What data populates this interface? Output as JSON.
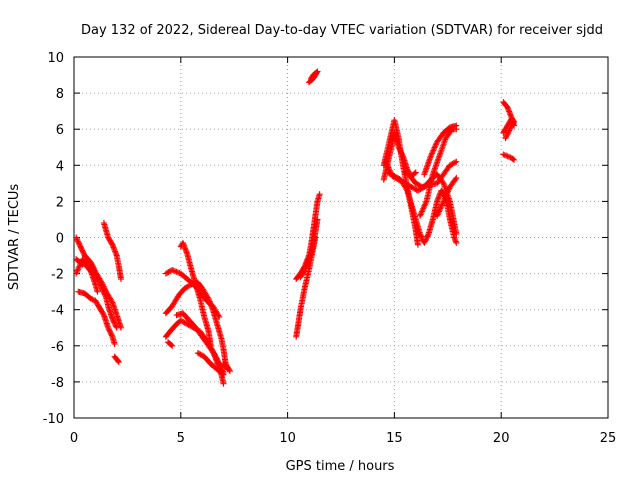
{
  "chart_data": {
    "type": "scatter",
    "title": "Day 132 of 2022, Sidereal Day-to-day VTEC variation (SDTVAR) for receiver sjdd",
    "xlabel": "GPS time / hours",
    "ylabel": "SDTVAR / TECUs",
    "xlim": [
      0,
      25
    ],
    "ylim": [
      -10,
      10
    ],
    "xticks": [
      "0",
      "5",
      "10",
      "15",
      "20",
      "25"
    ],
    "yticks": [
      "-10",
      "-8",
      "-6",
      "-4",
      "-2",
      "0",
      "2",
      "4",
      "6",
      "8",
      "10"
    ],
    "grid": true,
    "marker": "+",
    "color": "#ff0000",
    "segments": [
      [
        [
          0.1,
          0
        ],
        [
          0.3,
          -0.5
        ],
        [
          0.5,
          -1.0
        ],
        [
          0.8,
          -1.4
        ],
        [
          1.0,
          -1.9
        ],
        [
          1.3,
          -2.5
        ],
        [
          1.5,
          -3.0
        ],
        [
          1.8,
          -3.6
        ],
        [
          2.0,
          -4.3
        ],
        [
          2.2,
          -5.0
        ]
      ],
      [
        [
          0.1,
          -1.2
        ],
        [
          0.4,
          -1.5
        ],
        [
          0.7,
          -1.3
        ],
        [
          0.9,
          -1.8
        ],
        [
          1.1,
          -2.3
        ],
        [
          1.3,
          -2.8
        ],
        [
          1.5,
          -3.3
        ],
        [
          1.6,
          -3.8
        ],
        [
          1.8,
          -4.5
        ],
        [
          2.0,
          -5.0
        ]
      ],
      [
        [
          0.1,
          -2.0
        ],
        [
          0.4,
          -1.2
        ],
        [
          0.6,
          -1.6
        ],
        [
          0.8,
          -1.9
        ],
        [
          1.0,
          -2.6
        ],
        [
          1.1,
          -3.0
        ]
      ],
      [
        [
          0.2,
          -3.0
        ],
        [
          0.5,
          -3.1
        ],
        [
          0.8,
          -3.4
        ],
        [
          1.0,
          -3.5
        ],
        [
          1.2,
          -3.9
        ],
        [
          1.4,
          -4.3
        ],
        [
          1.6,
          -5.0
        ],
        [
          1.8,
          -5.5
        ],
        [
          1.9,
          -5.9
        ]
      ],
      [
        [
          1.4,
          0.8
        ],
        [
          1.6,
          0
        ],
        [
          1.8,
          -0.4
        ],
        [
          2.0,
          -1.0
        ],
        [
          2.1,
          -1.6
        ],
        [
          2.2,
          -2.3
        ]
      ],
      [
        [
          1.9,
          -6.6
        ],
        [
          2.1,
          -6.9
        ]
      ],
      [
        [
          4.3,
          -2.0
        ],
        [
          4.6,
          -1.8
        ],
        [
          5.0,
          -2.0
        ],
        [
          5.3,
          -2.3
        ],
        [
          5.6,
          -2.6
        ],
        [
          5.9,
          -3.0
        ],
        [
          6.2,
          -3.5
        ],
        [
          6.5,
          -3.8
        ],
        [
          6.8,
          -4.4
        ]
      ],
      [
        [
          4.3,
          -4.2
        ],
        [
          4.6,
          -3.8
        ],
        [
          4.9,
          -3.2
        ],
        [
          5.2,
          -2.8
        ],
        [
          5.5,
          -2.6
        ],
        [
          5.8,
          -2.5
        ],
        [
          6.0,
          -2.8
        ],
        [
          6.3,
          -3.4
        ],
        [
          6.5,
          -4.0
        ],
        [
          6.7,
          -4.8
        ],
        [
          6.9,
          -5.6
        ],
        [
          7.0,
          -6.2
        ],
        [
          7.1,
          -7.0
        ],
        [
          7.3,
          -7.4
        ]
      ],
      [
        [
          4.3,
          -5.5
        ],
        [
          4.5,
          -5.2
        ],
        [
          4.8,
          -4.8
        ],
        [
          5.0,
          -4.6
        ],
        [
          5.3,
          -4.8
        ],
        [
          5.6,
          -5.0
        ],
        [
          5.9,
          -5.2
        ],
        [
          6.2,
          -5.7
        ],
        [
          6.5,
          -6.3
        ],
        [
          6.7,
          -6.9
        ],
        [
          6.9,
          -7.6
        ],
        [
          7.0,
          -8.1
        ]
      ],
      [
        [
          4.4,
          -5.8
        ],
        [
          4.6,
          -6.0
        ]
      ],
      [
        [
          4.8,
          -4.3
        ],
        [
          5.1,
          -4.2
        ],
        [
          5.4,
          -4.6
        ],
        [
          5.7,
          -5.0
        ],
        [
          6.0,
          -5.5
        ],
        [
          6.3,
          -6.0
        ],
        [
          6.6,
          -6.5
        ],
        [
          6.8,
          -7.0
        ],
        [
          7.0,
          -7.5
        ]
      ],
      [
        [
          5.0,
          -0.5
        ],
        [
          5.1,
          -0.3
        ],
        [
          5.3,
          -0.9
        ],
        [
          5.5,
          -1.8
        ],
        [
          5.7,
          -2.6
        ],
        [
          5.9,
          -3.4
        ],
        [
          6.1,
          -4.4
        ],
        [
          6.3,
          -5.2
        ],
        [
          6.4,
          -6.0
        ]
      ],
      [
        [
          5.8,
          -6.4
        ],
        [
          6.1,
          -6.6
        ],
        [
          6.4,
          -7.0
        ],
        [
          6.7,
          -7.3
        ],
        [
          7.0,
          -7.6
        ]
      ],
      [
        [
          7.0,
          -7.0
        ],
        [
          7.2,
          -7.3
        ]
      ],
      [
        [
          10.4,
          -5.5
        ],
        [
          10.5,
          -4.8
        ],
        [
          10.6,
          -4.0
        ],
        [
          10.7,
          -3.4
        ],
        [
          10.8,
          -2.8
        ],
        [
          10.9,
          -2.3
        ],
        [
          11.0,
          -1.8
        ],
        [
          11.1,
          -1.2
        ],
        [
          11.2,
          -0.6
        ],
        [
          11.3,
          0
        ]
      ],
      [
        [
          10.4,
          -2.3
        ],
        [
          10.6,
          -2.0
        ],
        [
          10.8,
          -1.6
        ],
        [
          11.0,
          -1.0
        ],
        [
          11.1,
          -0.4
        ],
        [
          11.2,
          0.4
        ],
        [
          11.3,
          1.2
        ],
        [
          11.4,
          2.0
        ],
        [
          11.5,
          2.4
        ]
      ],
      [
        [
          10.6,
          -2.2
        ],
        [
          10.8,
          -1.8
        ],
        [
          11.0,
          -1.2
        ],
        [
          11.2,
          -0.5
        ],
        [
          11.3,
          0.3
        ],
        [
          11.4,
          1.0
        ]
      ],
      [
        [
          11.0,
          8.6
        ],
        [
          11.2,
          8.8
        ],
        [
          11.4,
          9.2
        ],
        [
          11.2,
          9.0
        ],
        [
          11.1,
          8.8
        ]
      ],
      [
        [
          14.5,
          4.0
        ],
        [
          14.7,
          5.0
        ],
        [
          14.9,
          6.0
        ],
        [
          15.0,
          6.5
        ],
        [
          15.2,
          5.5
        ],
        [
          15.4,
          4.0
        ],
        [
          15.6,
          2.8
        ],
        [
          15.8,
          1.6
        ],
        [
          16.0,
          0.4
        ],
        [
          16.1,
          -0.4
        ]
      ],
      [
        [
          14.5,
          3.2
        ],
        [
          14.7,
          4.2
        ],
        [
          14.9,
          5.2
        ],
        [
          15.0,
          5.8
        ],
        [
          15.2,
          5.0
        ],
        [
          15.4,
          4.5
        ],
        [
          15.6,
          3.8
        ],
        [
          15.8,
          3.3
        ],
        [
          16.0,
          3.0
        ],
        [
          16.3,
          2.8
        ],
        [
          16.6,
          2.9
        ],
        [
          17.0,
          3.0
        ],
        [
          17.3,
          3.5
        ],
        [
          17.6,
          4.0
        ],
        [
          17.9,
          4.2
        ]
      ],
      [
        [
          14.6,
          4.2
        ],
        [
          14.9,
          3.4
        ],
        [
          15.2,
          3.2
        ],
        [
          15.5,
          3.0
        ],
        [
          15.8,
          2.8
        ],
        [
          16.1,
          2.6
        ],
        [
          16.4,
          2.8
        ],
        [
          16.7,
          3.2
        ],
        [
          17.0,
          3.5
        ],
        [
          17.3,
          3.0
        ],
        [
          17.6,
          2.0
        ],
        [
          17.9,
          0.2
        ]
      ],
      [
        [
          14.7,
          3.6
        ],
        [
          15.0,
          3.4
        ],
        [
          15.3,
          3.2
        ],
        [
          15.6,
          2.6
        ],
        [
          15.8,
          1.8
        ],
        [
          16.0,
          1.0
        ],
        [
          16.2,
          0.2
        ],
        [
          16.4,
          -0.3
        ],
        [
          16.6,
          0.2
        ],
        [
          16.8,
          1.0
        ],
        [
          17.0,
          2.0
        ],
        [
          17.2,
          2.6
        ],
        [
          17.4,
          2.2
        ],
        [
          17.6,
          1.0
        ],
        [
          17.8,
          0
        ],
        [
          17.9,
          -0.3
        ]
      ],
      [
        [
          16.2,
          1.2
        ],
        [
          16.5,
          2.0
        ],
        [
          16.8,
          3.5
        ],
        [
          17.1,
          4.5
        ],
        [
          17.4,
          5.5
        ],
        [
          17.7,
          6.0
        ],
        [
          17.9,
          6.0
        ]
      ],
      [
        [
          16.4,
          3.5
        ],
        [
          16.7,
          4.5
        ],
        [
          17.0,
          5.3
        ],
        [
          17.3,
          5.8
        ],
        [
          17.6,
          6.1
        ],
        [
          17.9,
          6.2
        ]
      ],
      [
        [
          17.0,
          1.2
        ],
        [
          17.3,
          2.0
        ],
        [
          17.6,
          2.8
        ],
        [
          17.9,
          3.3
        ]
      ],
      [
        [
          15.5,
          3.6
        ],
        [
          15.8,
          3.4
        ],
        [
          16.0,
          3.6
        ]
      ],
      [
        [
          20.1,
          7.5
        ],
        [
          20.3,
          7.2
        ],
        [
          20.5,
          6.6
        ],
        [
          20.6,
          6.2
        ]
      ],
      [
        [
          20.1,
          5.8
        ],
        [
          20.3,
          6.2
        ],
        [
          20.5,
          6.6
        ],
        [
          20.6,
          6.4
        ],
        [
          20.4,
          6.0
        ],
        [
          20.2,
          5.5
        ]
      ],
      [
        [
          20.1,
          4.6
        ],
        [
          20.3,
          4.5
        ],
        [
          20.5,
          4.4
        ],
        [
          20.6,
          4.3
        ]
      ]
    ]
  }
}
